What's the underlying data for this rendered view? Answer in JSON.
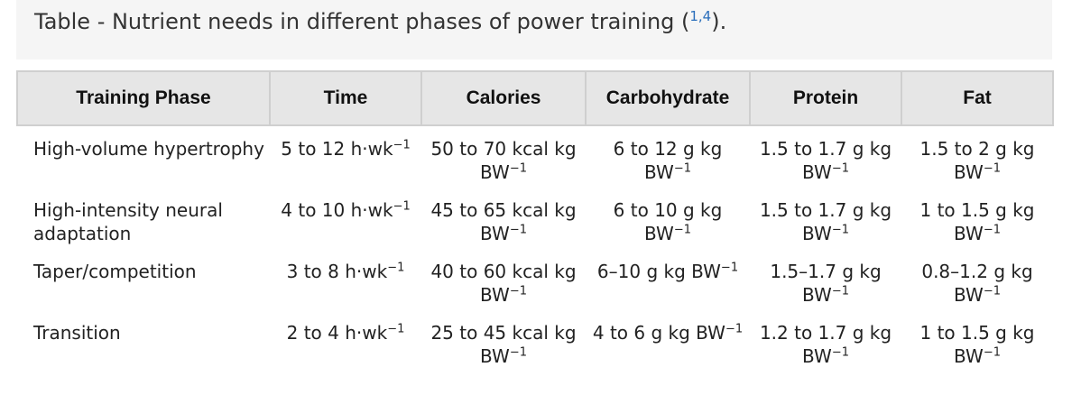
{
  "caption": {
    "text": "Table - Nutrient needs in different phases of power training (",
    "cite": "1,4",
    "suffix": ")."
  },
  "table": {
    "headers": [
      "Training Phase",
      "Time",
      "Calories",
      "Carbohydrate",
      "Protein",
      "Fat"
    ],
    "rows": [
      {
        "phase": "High-volume hypertrophy",
        "time": "5 to 12 h·wk",
        "time_exp": "−1",
        "calories": "50 to 70 kcal kg BW",
        "calories_exp": "−1",
        "carbohydrate": "6 to 12 g kg BW",
        "carbohydrate_exp": "−1",
        "protein": "1.5 to 1.7 g kg BW",
        "protein_exp": "−1",
        "fat": "1.5 to 2 g kg BW",
        "fat_exp": "−1"
      },
      {
        "phase": "High-intensity neural adaptation",
        "time": "4 to 10 h·wk",
        "time_exp": "−1",
        "calories": "45 to 65 kcal kg BW",
        "calories_exp": "−1",
        "carbohydrate": "6 to 10 g kg BW",
        "carbohydrate_exp": "−1",
        "protein": "1.5 to 1.7 g kg BW",
        "protein_exp": "−1",
        "fat": "1 to 1.5 g kg BW",
        "fat_exp": "−1"
      },
      {
        "phase": "Taper/competition",
        "time": "3 to 8 h·wk",
        "time_exp": "−1",
        "calories": "40 to 60 kcal kg BW",
        "calories_exp": "−1",
        "carbohydrate": "6–10 g kg BW",
        "carbohydrate_exp": "−1",
        "protein": "1.5–1.7 g kg BW",
        "protein_exp": "−1",
        "fat": "0.8–1.2 g kg BW",
        "fat_exp": "−1"
      },
      {
        "phase": "Transition",
        "time": "2 to 4 h·wk",
        "time_exp": "−1",
        "calories": "25 to 45 kcal kg BW",
        "calories_exp": "−1",
        "carbohydrate": "4 to 6 g kg BW",
        "carbohydrate_exp": "−1",
        "protein": "1.2 to 1.7 g kg BW",
        "protein_exp": "−1",
        "fat": "1 to 1.5 g kg BW",
        "fat_exp": "−1"
      }
    ]
  }
}
